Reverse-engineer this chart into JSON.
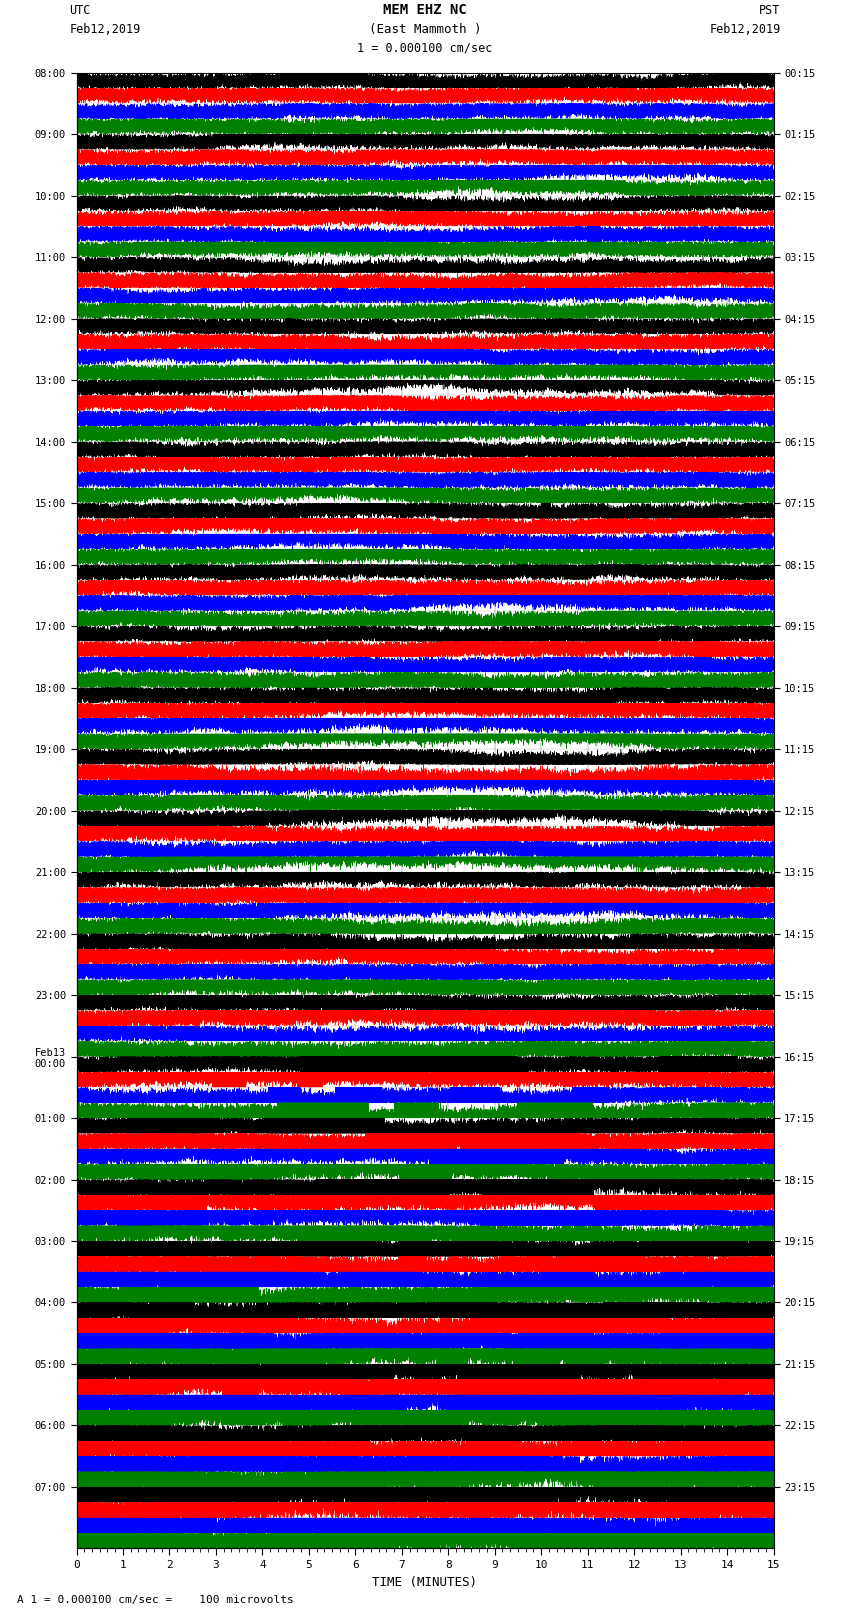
{
  "title_line1": "MEM EHZ NC",
  "title_line2": "(East Mammoth )",
  "scale_text": "1 = 0.000100 cm/sec",
  "left_label_top": "UTC",
  "left_label_date": "Feb12,2019",
  "right_label_top": "PST",
  "right_label_date": "Feb12,2019",
  "xlabel": "TIME (MINUTES)",
  "bottom_note": "A 1 = 0.000100 cm/sec =    100 microvolts",
  "utc_times": [
    "08:00",
    "09:00",
    "10:00",
    "11:00",
    "12:00",
    "13:00",
    "14:00",
    "15:00",
    "16:00",
    "17:00",
    "18:00",
    "19:00",
    "20:00",
    "21:00",
    "22:00",
    "23:00",
    "Feb13\n00:00",
    "01:00",
    "02:00",
    "03:00",
    "04:00",
    "05:00",
    "06:00",
    "07:00"
  ],
  "pst_times": [
    "00:15",
    "01:15",
    "02:15",
    "03:15",
    "04:15",
    "05:15",
    "06:15",
    "07:15",
    "08:15",
    "09:15",
    "10:15",
    "11:15",
    "12:15",
    "13:15",
    "14:15",
    "15:15",
    "16:15",
    "17:15",
    "18:15",
    "19:15",
    "20:15",
    "21:15",
    "22:15",
    "23:15"
  ],
  "colors": [
    "black",
    "red",
    "blue",
    "green"
  ],
  "n_rows": 96,
  "trace_duration_minutes": 15,
  "sample_rate": 50,
  "fig_width": 8.5,
  "fig_height": 16.13,
  "bg_color": "white"
}
